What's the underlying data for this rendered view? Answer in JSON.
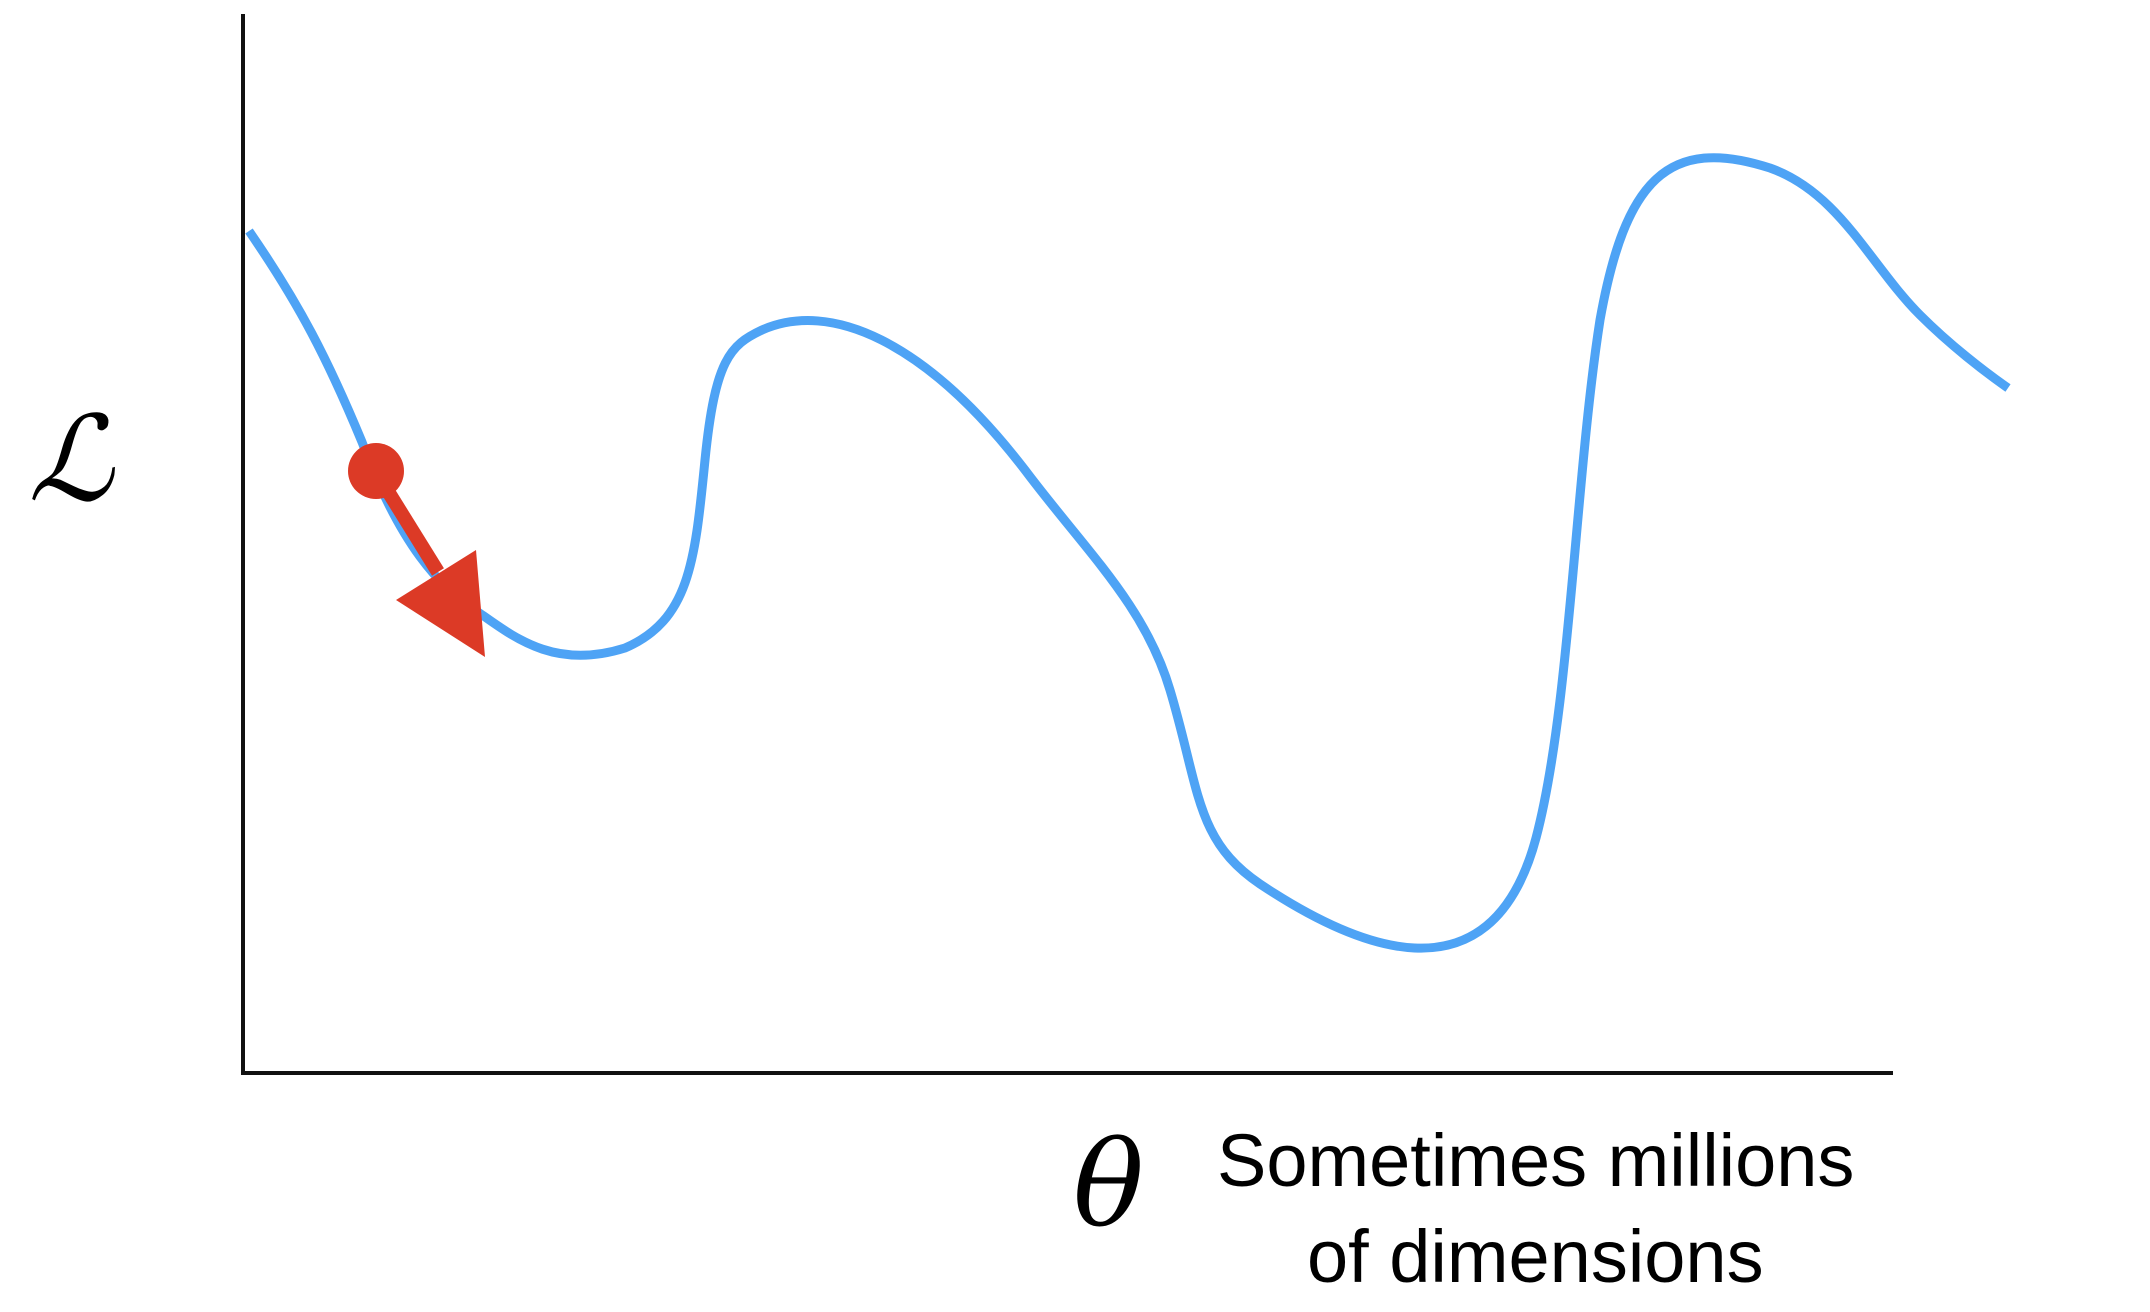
{
  "y_axis_symbol": "ℒ",
  "x_axis_symbol": "θ",
  "x_axis_caption": {
    "line1": "Sometimes millions",
    "line2": "of dimensions"
  },
  "colors": {
    "curve": "#4ea3f5",
    "gradient_marker": "#dc3a26",
    "axes": "#111111"
  },
  "icons": {
    "current_point": "red-dot",
    "step_direction": "red-arrow"
  }
}
